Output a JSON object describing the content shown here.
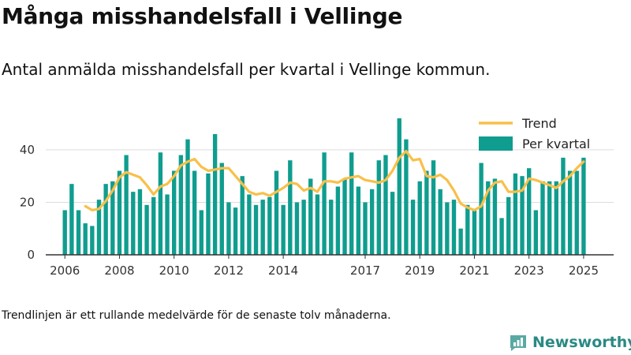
{
  "header": {
    "title": "Många misshandelsfall i Vellinge",
    "subtitle": "Antal anmälda misshandelsfall per kvartal i Vellinge kommun."
  },
  "footnote": "Trendlinjen är ett rullande medelvärde för de senaste tolv månaderna.",
  "brand": {
    "name": "Newsworthy"
  },
  "colors": {
    "bar": "#0f9d8f",
    "trend": "#f8c04a",
    "grid": "#dddddd",
    "axis": "#333333"
  },
  "chart_data": {
    "type": "bar",
    "ylim": [
      0,
      55
    ],
    "yticks": [
      0,
      20,
      40
    ],
    "xlim": [
      2005.3,
      2026.1
    ],
    "xticks": [
      2006,
      2008,
      2010,
      2012,
      2014,
      2017,
      2019,
      2021,
      2023,
      2025
    ],
    "grid": true,
    "legend_position": "top-right",
    "series": [
      {
        "name": "Per kvartal",
        "type": "bar",
        "x_start": 2006.0,
        "step": 0.25,
        "values": [
          17,
          27,
          17,
          12,
          11,
          21,
          27,
          28,
          32,
          38,
          24,
          25,
          19,
          22,
          39,
          23,
          32,
          38,
          44,
          32,
          17,
          31,
          46,
          35,
          20,
          18,
          30,
          23,
          19,
          21,
          22,
          32,
          19,
          36,
          20,
          21,
          29,
          23,
          39,
          21,
          26,
          29,
          39,
          26,
          20,
          25,
          36,
          38,
          24,
          52,
          44,
          21,
          28,
          32,
          36,
          25,
          20,
          21,
          10,
          19,
          17,
          35,
          28,
          29,
          14,
          22,
          31,
          30,
          33,
          17,
          28,
          28,
          28,
          37,
          32,
          32,
          37
        ]
      },
      {
        "name": "Trend",
        "type": "line",
        "x": [
          2006.75,
          2007.0,
          2007.25,
          2007.5,
          2007.75,
          2008.0,
          2008.25,
          2008.5,
          2008.75,
          2009.0,
          2009.25,
          2009.5,
          2009.75,
          2010.0,
          2010.25,
          2010.5,
          2010.75,
          2011.0,
          2011.25,
          2011.5,
          2011.75,
          2012.0,
          2012.25,
          2012.5,
          2012.75,
          2013.0,
          2013.25,
          2013.5,
          2013.75,
          2014.0,
          2014.25,
          2014.5,
          2014.75,
          2015.0,
          2015.25,
          2015.5,
          2015.75,
          2016.0,
          2016.25,
          2016.5,
          2016.75,
          2017.0,
          2017.25,
          2017.5,
          2017.75,
          2018.0,
          2018.25,
          2018.5,
          2018.75,
          2019.0,
          2019.25,
          2019.5,
          2019.75,
          2020.0,
          2020.25,
          2020.5,
          2020.75,
          2021.0,
          2021.25,
          2021.5,
          2021.75,
          2022.0,
          2022.25,
          2022.5,
          2022.75,
          2023.0,
          2023.25,
          2023.5,
          2023.75,
          2024.0,
          2024.25,
          2024.5,
          2024.75,
          2025.0
        ],
        "values": [
          18.5,
          17,
          17.5,
          20.5,
          24.5,
          29.5,
          31.5,
          30.5,
          29.5,
          26.5,
          23,
          26,
          27,
          30,
          34,
          35.5,
          36.5,
          33.5,
          32,
          32.5,
          33,
          33,
          30,
          27,
          24,
          23,
          23.5,
          22.5,
          24,
          25.5,
          27.5,
          27,
          24.5,
          25.5,
          24,
          28,
          28,
          27.5,
          29,
          29.5,
          30,
          28.5,
          28,
          27.5,
          28.5,
          32,
          37,
          39.5,
          36,
          36.5,
          30,
          29.5,
          30.5,
          28.5,
          24.5,
          19.5,
          18,
          17,
          18.5,
          24.5,
          27.5,
          28,
          24,
          24,
          24.5,
          29,
          28.5,
          27.5,
          26.5,
          25.5,
          28,
          30,
          33,
          35.5
        ]
      }
    ]
  }
}
